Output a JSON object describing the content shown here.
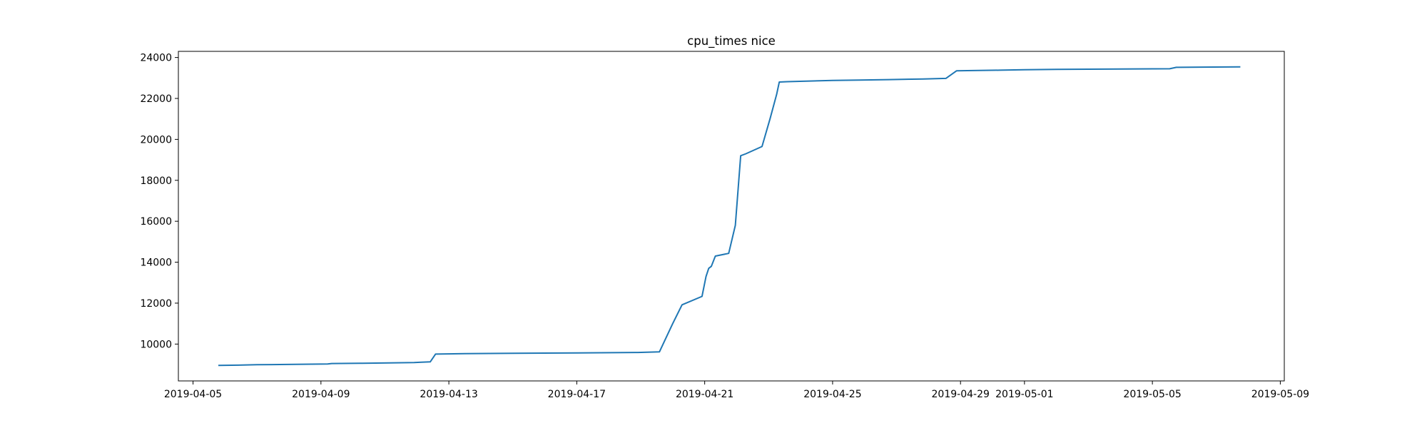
{
  "chart_data": {
    "type": "line",
    "title": "cpu_times nice",
    "xlabel": "",
    "ylabel": "",
    "grid": false,
    "legend": "none",
    "xlim": [
      "2019-04-04 13:00",
      "2019-05-09 03:00"
    ],
    "ylim": [
      8200,
      24300
    ],
    "x_ticks": [
      "2019-04-05",
      "2019-04-09",
      "2019-04-13",
      "2019-04-17",
      "2019-04-21",
      "2019-04-25",
      "2019-04-29",
      "2019-05-01",
      "2019-05-05",
      "2019-05-09"
    ],
    "y_ticks": [
      10000,
      12000,
      14000,
      16000,
      18000,
      20000,
      22000,
      24000
    ],
    "line_color": "#1f77b4",
    "series": [
      {
        "x": [
          "2019-04-05 19:00",
          "2019-04-06 10:00",
          "2019-04-07 00:00",
          "2019-04-08 05:00",
          "2019-04-09 05:00",
          "2019-04-09 08:00",
          "2019-04-10 05:00",
          "2019-04-11 03:00",
          "2019-04-11 22:00",
          "2019-04-12 02:00",
          "2019-04-12 10:00",
          "2019-04-12 14:00",
          "2019-04-13 12:00",
          "2019-04-15 01:00",
          "2019-04-17 01:00",
          "2019-04-18 22:00",
          "2019-04-19 14:00",
          "2019-04-20 00:00",
          "2019-04-20 07:00",
          "2019-04-20 22:00",
          "2019-04-21 01:00",
          "2019-04-21 03:00",
          "2019-04-21 05:00",
          "2019-04-21 08:00",
          "2019-04-21 18:00",
          "2019-04-21 23:00",
          "2019-04-22 03:00",
          "2019-04-22 07:00",
          "2019-04-22 19:00",
          "2019-04-23 01:00",
          "2019-04-23 06:00",
          "2019-04-23 08:00",
          "2019-04-23 14:00",
          "2019-04-24 02:00",
          "2019-04-25 00:00",
          "2019-04-25 20:00",
          "2019-04-26 18:00",
          "2019-04-27 20:00",
          "2019-04-28 13:00",
          "2019-04-28 21:00",
          "2019-04-29 05:00",
          "2019-04-30 05:00",
          "2019-05-01 00:00",
          "2019-05-02 00:00",
          "2019-05-03 00:00",
          "2019-05-04 00:00",
          "2019-05-05 13:00",
          "2019-05-05 18:00",
          "2019-05-06 12:00",
          "2019-05-07 18:00"
        ],
        "y": [
          8960,
          8970,
          8990,
          9010,
          9030,
          9050,
          9060,
          9080,
          9100,
          9110,
          9130,
          9510,
          9530,
          9550,
          9570,
          9590,
          9620,
          11000,
          11920,
          12330,
          13300,
          13700,
          13800,
          14300,
          14430,
          15800,
          19200,
          19300,
          19650,
          21000,
          22200,
          22800,
          22820,
          22840,
          22880,
          22900,
          22920,
          22950,
          22980,
          23350,
          23360,
          23380,
          23400,
          23420,
          23430,
          23440,
          23450,
          23520,
          23530,
          23540
        ]
      }
    ]
  }
}
